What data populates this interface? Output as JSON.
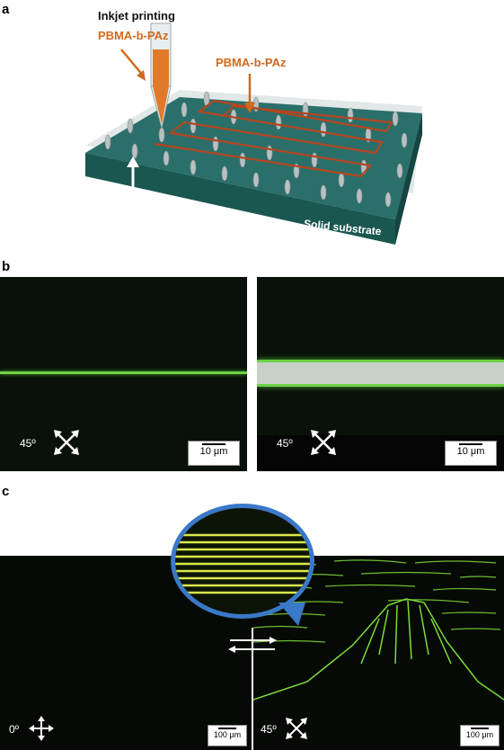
{
  "panel_a": {
    "letter": "a",
    "inkjet_label": "Inkjet printing",
    "pen_label": "PBMA-b-PAz",
    "line_label": "PBMA-b-PAz",
    "substrate_label": "Solid substrate"
  },
  "panel_b": {
    "letter": "b",
    "left": {
      "angle": "45º",
      "scale": "10 μm"
    },
    "right": {
      "angle": "45º",
      "scale": "10 μm"
    }
  },
  "panel_c": {
    "letter": "c",
    "left": {
      "angle": "0º",
      "scale": "100 μm"
    },
    "right": {
      "angle": "45º",
      "scale": "100 μm"
    }
  },
  "colors": {
    "substrate": "#1f6e68",
    "printed_line": "#b5451f",
    "label_orange": "#d2691e",
    "fluorescence_green": "#7ddc3a",
    "zoom_ring": "#3a78c8"
  }
}
